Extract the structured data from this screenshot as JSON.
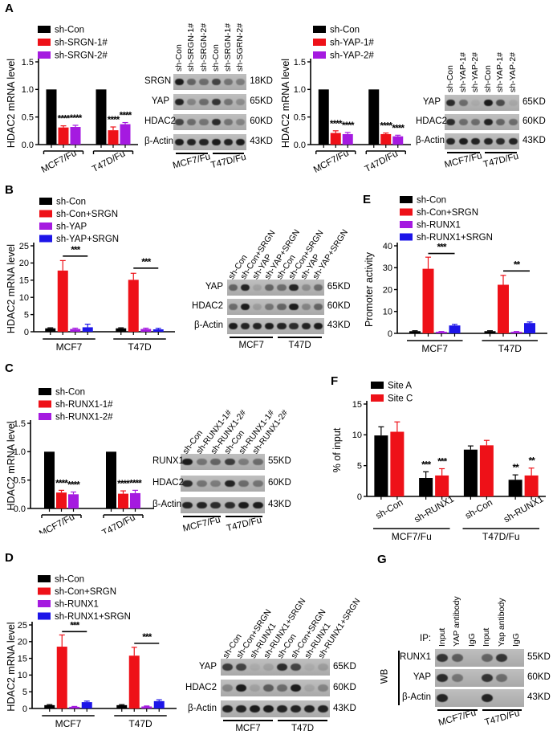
{
  "panel_letters": {
    "a": "A",
    "b": "B",
    "c": "C",
    "d": "D",
    "e": "E",
    "f": "F",
    "g": "G"
  },
  "colors": {
    "black": "#000000",
    "red": "#ee1118",
    "purple": "#a51ae0",
    "blue": "#1d15e8"
  },
  "chart_data": {
    "a_left": {
      "type": "bar",
      "title": "",
      "xlabel": "",
      "ylabel": "HDAC2 mRNA level",
      "ylim": [
        0,
        1.5
      ],
      "yticks": [
        "0.0",
        "0.5",
        "1.0",
        "1.5"
      ],
      "categories": [
        "MCF7/Fu",
        "T47D/Fu"
      ],
      "series": [
        {
          "name": "sh-Con",
          "color": "#000000",
          "values": [
            1.0,
            1.0
          ],
          "errors": [
            0,
            0
          ]
        },
        {
          "name": "sh-SRGN-1#",
          "color": "#ee1118",
          "values": [
            0.31,
            0.26
          ],
          "errors": [
            0.03,
            0.06
          ]
        },
        {
          "name": "sh-SRGN-2#",
          "color": "#a51ae0",
          "values": [
            0.32,
            0.37
          ],
          "errors": [
            0.03,
            0.03
          ]
        }
      ],
      "sig_stars": [
        {
          "cat": 0,
          "ser": 1,
          "text": "****"
        },
        {
          "cat": 0,
          "ser": 2,
          "text": "****"
        },
        {
          "cat": 1,
          "ser": 1,
          "text": "****"
        },
        {
          "cat": 1,
          "ser": 2,
          "text": "****"
        }
      ],
      "sig_lines": []
    },
    "a_right": {
      "type": "bar",
      "title": "",
      "xlabel": "",
      "ylabel": "HDAC2 mRNA level",
      "ylim": [
        0,
        1.5
      ],
      "yticks": [
        "0.0",
        "0.5",
        "1.0",
        "1.5"
      ],
      "categories": [
        "MCF7/Fu",
        "T47D/Fu"
      ],
      "series": [
        {
          "name": "sh-Con",
          "color": "#000000",
          "values": [
            1.0,
            1.0
          ],
          "errors": [
            0,
            0
          ]
        },
        {
          "name": "sh-YAP-1#",
          "color": "#ee1118",
          "values": [
            0.21,
            0.19
          ],
          "errors": [
            0.04,
            0.02
          ]
        },
        {
          "name": "sh-YAP-2#",
          "color": "#a51ae0",
          "values": [
            0.19,
            0.15
          ],
          "errors": [
            0.03,
            0.02
          ]
        }
      ],
      "sig_stars": [
        {
          "cat": 0,
          "ser": 1,
          "text": "****"
        },
        {
          "cat": 0,
          "ser": 2,
          "text": "****"
        },
        {
          "cat": 1,
          "ser": 1,
          "text": "****"
        },
        {
          "cat": 1,
          "ser": 2,
          "text": "****"
        }
      ],
      "sig_lines": []
    },
    "b": {
      "type": "bar",
      "title": "",
      "xlabel": "",
      "ylabel": "HDAC2 mRNA level",
      "ylim": [
        0,
        25
      ],
      "yticks": [
        "0",
        "5",
        "10",
        "15",
        "20",
        "25"
      ],
      "categories": [
        "MCF7",
        "T47D"
      ],
      "series": [
        {
          "name": "sh-Con",
          "color": "#000000",
          "values": [
            1.0,
            1.0
          ],
          "errors": [
            0.15,
            0.15
          ]
        },
        {
          "name": "sh-Con+SRGN",
          "color": "#ee1118",
          "values": [
            17.8,
            15.1
          ],
          "errors": [
            2.9,
            1.9
          ]
        },
        {
          "name": "sh-YAP",
          "color": "#a51ae0",
          "values": [
            0.8,
            0.8
          ],
          "errors": [
            0.25,
            0.25
          ]
        },
        {
          "name": "sh-YAP+SRGN",
          "color": "#1d15e8",
          "values": [
            1.3,
            0.7
          ],
          "errors": [
            0.9,
            0.3
          ]
        }
      ],
      "sig_stars": [],
      "sig_lines": [
        {
          "cat": 0,
          "from": 1,
          "to": 3,
          "y": 22,
          "text": "***"
        },
        {
          "cat": 1,
          "from": 1,
          "to": 3,
          "y": 18.5,
          "text": "***"
        }
      ]
    },
    "c": {
      "type": "bar",
      "title": "",
      "xlabel": "",
      "ylabel": "HDAC2 mRNA level",
      "ylim": [
        0,
        1.5
      ],
      "yticks": [
        "0.0",
        "0.5",
        "1.0",
        "1.5"
      ],
      "categories": [
        "MCF7/Fu",
        "T47D/Fu"
      ],
      "series": [
        {
          "name": "sh-Con",
          "color": "#000000",
          "values": [
            1.0,
            1.0
          ],
          "errors": [
            0,
            0
          ]
        },
        {
          "name": "sh-RUNX1-1#",
          "color": "#ee1118",
          "values": [
            0.28,
            0.26
          ],
          "errors": [
            0.04,
            0.05
          ]
        },
        {
          "name": "sh-RUNX1-2#",
          "color": "#a51ae0",
          "values": [
            0.25,
            0.27
          ],
          "errors": [
            0.04,
            0.05
          ]
        }
      ],
      "sig_stars": [
        {
          "cat": 0,
          "ser": 1,
          "text": "****"
        },
        {
          "cat": 0,
          "ser": 2,
          "text": "****"
        },
        {
          "cat": 1,
          "ser": 1,
          "text": "****"
        },
        {
          "cat": 1,
          "ser": 2,
          "text": "****"
        }
      ],
      "sig_lines": []
    },
    "d": {
      "type": "bar",
      "title": "",
      "xlabel": "",
      "ylabel": "HDAC2 mRNA level",
      "ylim": [
        0,
        25
      ],
      "yticks": [
        "0",
        "5",
        "10",
        "15",
        "20",
        "25"
      ],
      "categories": [
        "MCF7",
        "T47D"
      ],
      "series": [
        {
          "name": "sh-Con",
          "color": "#000000",
          "values": [
            1.0,
            1.0
          ],
          "errors": [
            0.15,
            0.15
          ]
        },
        {
          "name": "sh-Con+SRGN",
          "color": "#ee1118",
          "values": [
            18.5,
            15.8
          ],
          "errors": [
            3.5,
            2.5
          ]
        },
        {
          "name": "sh-RUNX1",
          "color": "#a51ae0",
          "values": [
            0.5,
            0.6
          ],
          "errors": [
            0.12,
            0.15
          ]
        },
        {
          "name": "sh-RUNX1+SRGN",
          "color": "#1d15e8",
          "values": [
            1.9,
            2.2
          ],
          "errors": [
            0.3,
            0.4
          ]
        }
      ],
      "sig_stars": [],
      "sig_lines": [
        {
          "cat": 0,
          "from": 1,
          "to": 3,
          "y": 23,
          "text": "***"
        },
        {
          "cat": 1,
          "from": 1,
          "to": 3,
          "y": 19.5,
          "text": "***"
        }
      ]
    },
    "e": {
      "type": "bar",
      "title": "",
      "xlabel": "",
      "ylabel": "Promoter activity",
      "ylim": [
        0,
        40
      ],
      "yticks": [
        "0",
        "10",
        "20",
        "30",
        "40"
      ],
      "categories": [
        "MCF7",
        "T47D"
      ],
      "series": [
        {
          "name": "sh-Con",
          "color": "#000000",
          "values": [
            1.0,
            1.0
          ],
          "errors": [
            0.2,
            0.2
          ]
        },
        {
          "name": "sh-Con+SRGN",
          "color": "#ee1118",
          "values": [
            29.5,
            22.2
          ],
          "errors": [
            5.3,
            4.3
          ]
        },
        {
          "name": "sh-RUNX1",
          "color": "#a51ae0",
          "values": [
            0.7,
            0.7
          ],
          "errors": [
            0.15,
            0.15
          ]
        },
        {
          "name": "sh-RUNX1+SRGN",
          "color": "#1d15e8",
          "values": [
            3.6,
            4.7
          ],
          "errors": [
            0.5,
            0.5
          ]
        }
      ],
      "sig_stars": [],
      "sig_lines": [
        {
          "cat": 0,
          "from": 1,
          "to": 3,
          "y": 36.5,
          "text": "***"
        },
        {
          "cat": 1,
          "from": 1,
          "to": 3,
          "y": 28.5,
          "text": "**"
        }
      ]
    },
    "f": {
      "type": "bar",
      "title": "",
      "xlabel": "",
      "ylabel": "% of input",
      "ylim": [
        0,
        15
      ],
      "yticks": [
        "0",
        "5",
        "10",
        "15"
      ],
      "categories": [
        "sh-Con",
        "sh-RUNX1",
        "sh-Con",
        "sh-RUNX1"
      ],
      "groups": [
        {
          "label": "MCF7/Fu",
          "from": 0,
          "to": 1
        },
        {
          "label": "T47D/Fu",
          "from": 2,
          "to": 3
        }
      ],
      "series": [
        {
          "name": "Site A",
          "color": "#000000",
          "values": [
            9.9,
            3.0,
            7.6,
            2.7
          ],
          "errors": [
            1.4,
            1.0,
            0.6,
            0.8
          ]
        },
        {
          "name": "Site C",
          "color": "#ee1118",
          "values": [
            10.5,
            3.4,
            8.3,
            3.4
          ],
          "errors": [
            1.6,
            1.1,
            0.8,
            1.2
          ]
        }
      ],
      "sig_stars": [
        {
          "cat": 1,
          "ser": 0,
          "text": "***"
        },
        {
          "cat": 1,
          "ser": 1,
          "text": "***"
        },
        {
          "cat": 3,
          "ser": 0,
          "text": "**"
        },
        {
          "cat": 3,
          "ser": 1,
          "text": "**"
        }
      ],
      "sig_lines": []
    }
  },
  "blots": {
    "a_left": {
      "lanes": [
        "sh-Con",
        "sh-SRGN-1#",
        "sh-SRGN-2#",
        "sh-Con",
        "sh-SRGN-1#",
        "sh-SGRN-2#"
      ],
      "rows": [
        {
          "name": "SRGN",
          "kd": "18KD",
          "bands": [
            0.95,
            0.5,
            0.45,
            0.7,
            0.4,
            0.35
          ]
        },
        {
          "name": "YAP",
          "kd": "65KD",
          "bands": [
            0.9,
            0.3,
            0.45,
            0.8,
            0.4,
            0.25
          ]
        },
        {
          "name": "HDAC2",
          "kd": "60KD",
          "bands": [
            0.7,
            0.45,
            0.4,
            0.85,
            0.4,
            0.3
          ]
        },
        {
          "name": "β-Actin",
          "kd": "43KD",
          "bands": [
            0.95,
            0.9,
            0.9,
            0.95,
            0.9,
            0.95
          ]
        }
      ],
      "groups": [
        {
          "label": "MCF7/Fu",
          "from": 0,
          "to": 2
        },
        {
          "label": "T47D/Fu",
          "from": 3,
          "to": 5
        }
      ]
    },
    "a_right": {
      "lanes": [
        "sh-Con",
        "sh-YAP-1#",
        "sh-YAP-2#",
        "sh-Con",
        "sh-YAP-1#",
        "sh-YAP-2#"
      ],
      "rows": [
        {
          "name": "YAP",
          "kd": "65KD",
          "bands": [
            0.85,
            0.45,
            0.06,
            0.95,
            0.65,
            0.08
          ]
        },
        {
          "name": "HDAC2",
          "kd": "60KD",
          "bands": [
            0.85,
            0.45,
            0.45,
            0.9,
            0.5,
            0.45
          ]
        },
        {
          "name": "β-Actin",
          "kd": "43KD",
          "bands": [
            0.9,
            0.95,
            0.9,
            0.9,
            0.85,
            0.9
          ]
        }
      ],
      "groups": [
        {
          "label": "MCF7/Fu",
          "from": 0,
          "to": 2
        },
        {
          "label": "T47D/Fu",
          "from": 3,
          "to": 5
        }
      ]
    },
    "b": {
      "lanes": [
        "sh-Con",
        "sh-Con+SRGN",
        "sh-YAP",
        "sh-YAP+SRGN",
        "sh-Con",
        "sh-Con+SRGN",
        "sh-YAP",
        "sh-YAP+SRGN"
      ],
      "rows": [
        {
          "name": "YAP",
          "kd": "65KD",
          "bands": [
            0.5,
            0.9,
            0.12,
            0.5,
            0.45,
            0.9,
            0.25,
            0.45
          ]
        },
        {
          "name": "HDAC2",
          "kd": "60KD",
          "bands": [
            0.45,
            0.95,
            0.15,
            0.4,
            0.5,
            0.95,
            0.3,
            0.5
          ]
        },
        {
          "name": "β-Actin",
          "kd": "43KD",
          "bands": [
            0.95,
            0.9,
            0.9,
            0.95,
            0.9,
            0.85,
            0.9,
            0.95
          ]
        }
      ],
      "groups": [
        {
          "label": "MCF7",
          "from": 0,
          "to": 3
        },
        {
          "label": "T47D",
          "from": 4,
          "to": 7
        }
      ]
    },
    "c": {
      "lanes": [
        "sh-Con",
        "sh-RUNX1-1#",
        "sh-RUNX1-2#",
        "sh-Con",
        "sh-RUNX1-1#",
        "sh-RUNX1-2#"
      ],
      "rows": [
        {
          "name": "RUNX1",
          "kd": "55KD",
          "bands": [
            0.95,
            0.4,
            0.5,
            0.75,
            0.35,
            0.45
          ]
        },
        {
          "name": "HDAC2",
          "kd": "60KD",
          "bands": [
            0.85,
            0.4,
            0.35,
            0.9,
            0.45,
            0.4
          ]
        },
        {
          "name": "β-Actin",
          "kd": "43KD",
          "bands": [
            0.9,
            0.9,
            0.85,
            0.85,
            0.95,
            0.95
          ]
        }
      ],
      "groups": [
        {
          "label": "MCF7/Fu",
          "from": 0,
          "to": 2
        },
        {
          "label": "T47D/Fu",
          "from": 3,
          "to": 5
        }
      ]
    },
    "d": {
      "lanes": [
        "sh-Con",
        "sh-Con+SRGN",
        "sh-RUNX1",
        "sh-RUNX1+SRGN",
        "sh-Con",
        "sh-Con+SRGN",
        "sh-RUNX1",
        "sh-RUNX1+SRGN"
      ],
      "rows": [
        {
          "name": "YAP",
          "kd": "65KD",
          "bands": [
            0.75,
            0.7,
            0.06,
            0.12,
            0.85,
            0.7,
            0.06,
            0.15
          ]
        },
        {
          "name": "HDAC2",
          "kd": "60KD",
          "bands": [
            0.3,
            0.95,
            0.12,
            0.55,
            0.45,
            0.95,
            0.1,
            0.3
          ]
        },
        {
          "name": "β-Actin",
          "kd": "43KD",
          "bands": [
            0.9,
            0.9,
            0.95,
            0.95,
            0.9,
            0.9,
            0.9,
            0.9
          ]
        }
      ],
      "groups": [
        {
          "label": "MCF7",
          "from": 0,
          "to": 3
        },
        {
          "label": "T47D",
          "from": 4,
          "to": 7
        }
      ]
    },
    "g": {
      "ip_label": "IP:",
      "wb_label": "WB",
      "lanes": [
        "Input",
        "YAP antibody",
        "IgG",
        "Input",
        "Yap antibody",
        "IgG"
      ],
      "rows": [
        {
          "name": "RUNX1",
          "kd": "55KD",
          "bands": [
            0.8,
            0.55,
            0,
            0.5,
            0.8,
            0
          ]
        },
        {
          "name": "YAP",
          "kd": "60KD",
          "bands": [
            0.85,
            0.4,
            0,
            0.8,
            0.45,
            0
          ]
        },
        {
          "name": "β-Actin",
          "kd": "43KD",
          "bands": [
            0.9,
            0,
            0,
            0.9,
            0,
            0
          ]
        }
      ],
      "groups": [
        {
          "label": "MCF7/Fu",
          "from": 0,
          "to": 2
        },
        {
          "label": "T47D/Fu",
          "from": 3,
          "to": 5
        }
      ]
    }
  }
}
